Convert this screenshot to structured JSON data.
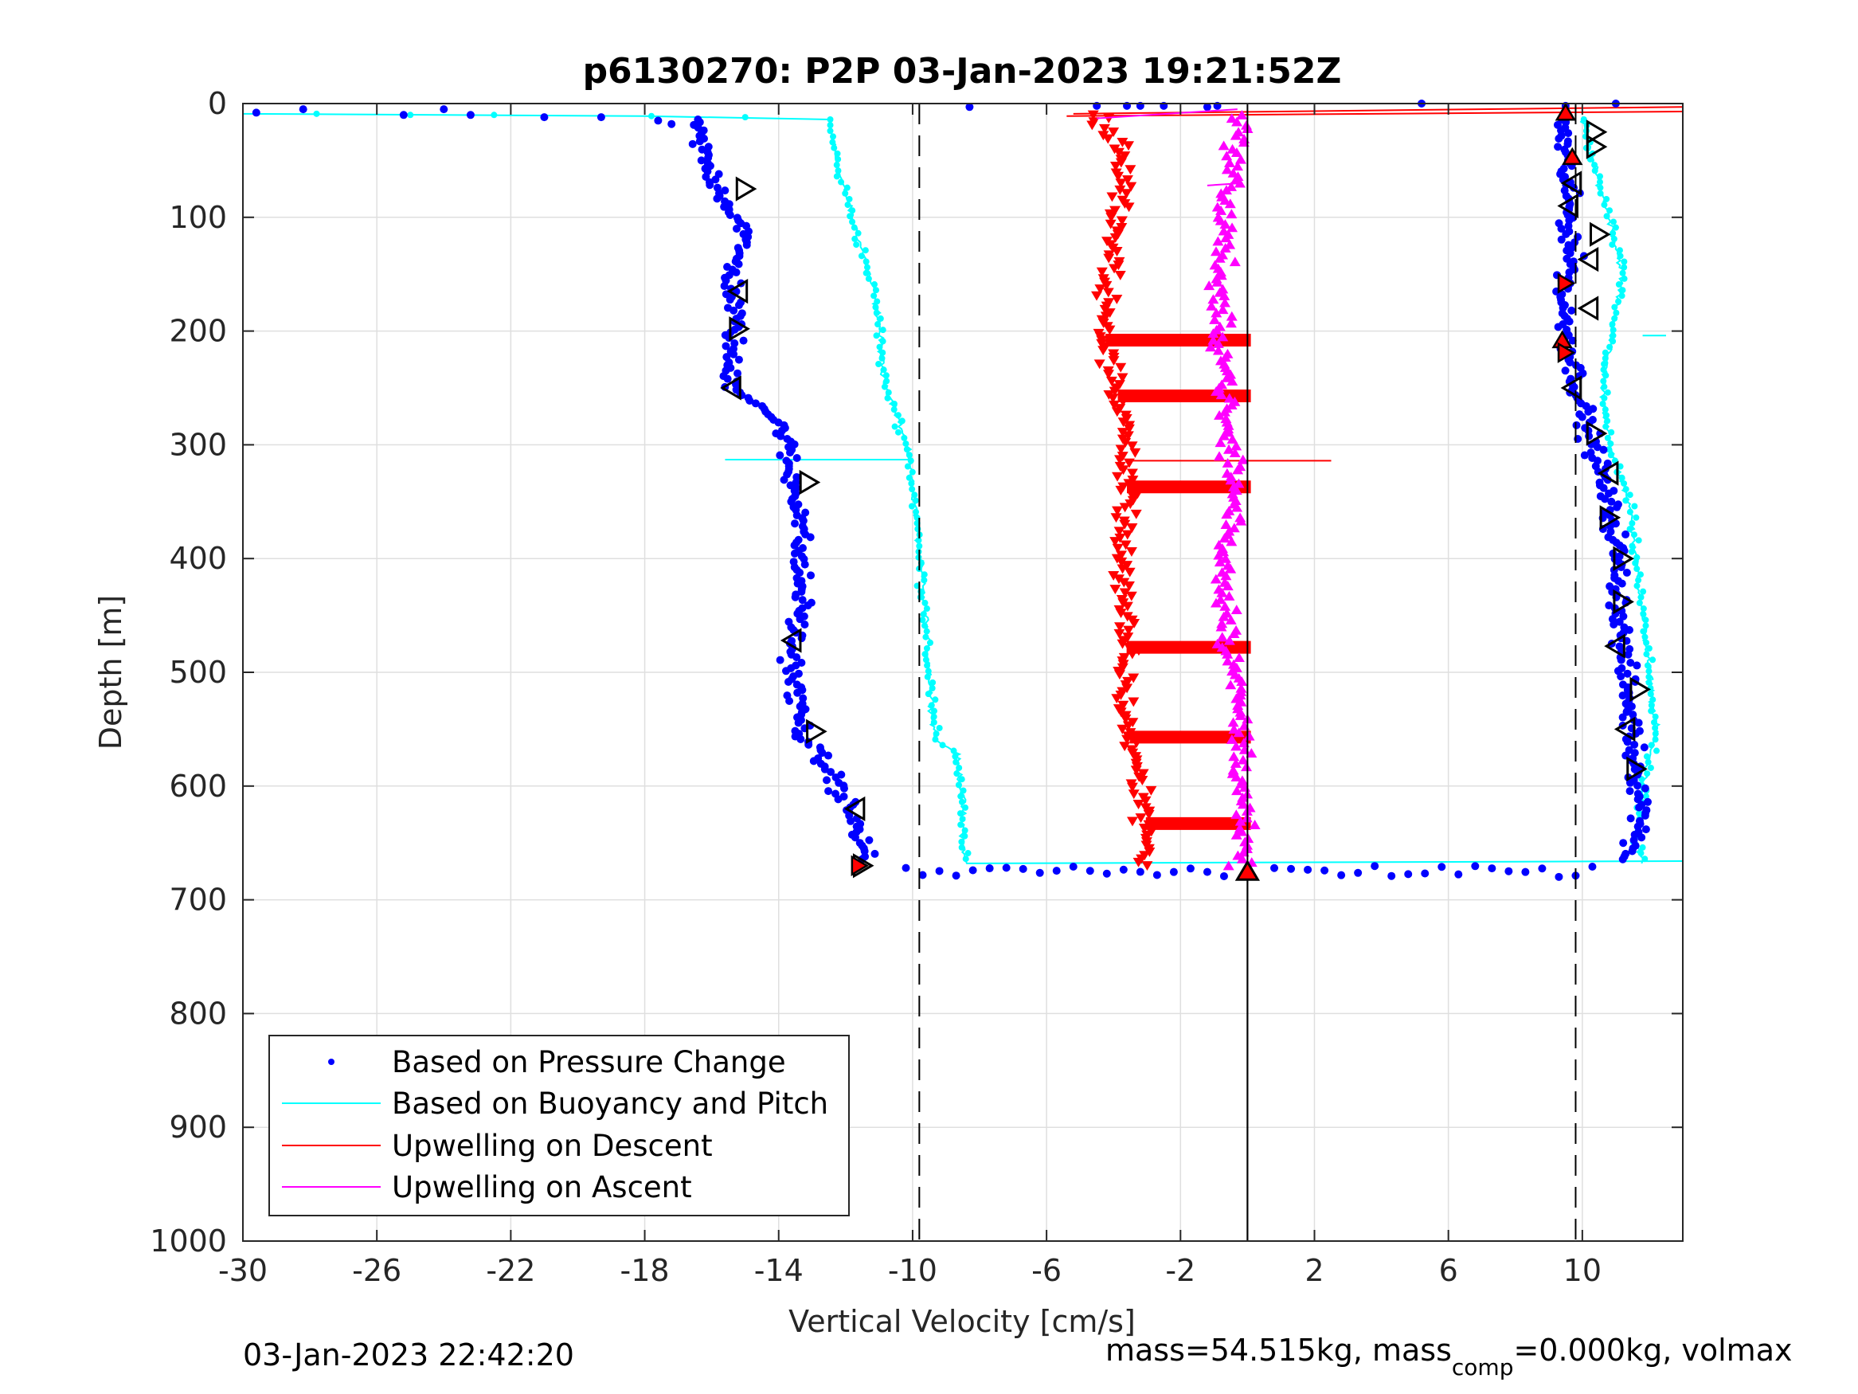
{
  "chart_data": {
    "type": "scatter",
    "title": "p6130270: P2P 03-Jan-2023 19:21:52Z",
    "xlabel": "Vertical Velocity [cm/s]",
    "ylabel": "Depth [m]",
    "xlim": [
      -30,
      13
    ],
    "ylim": [
      0,
      1000
    ],
    "y_reversed": true,
    "grid": true,
    "x_ticks": [
      -30,
      -26,
      -22,
      -18,
      -14,
      -10,
      -6,
      -2,
      2,
      6,
      10
    ],
    "x_tick_labels": [
      "-30",
      "-26",
      "-22",
      "-18",
      "-14",
      "-10",
      "-6",
      "-2",
      "2",
      "6",
      "10"
    ],
    "y_ticks": [
      0,
      100,
      200,
      300,
      400,
      500,
      600,
      700,
      800,
      900,
      1000
    ],
    "y_tick_labels": [
      "0",
      "100",
      "200",
      "300",
      "400",
      "500",
      "600",
      "700",
      "800",
      "900",
      "1000"
    ],
    "legend_position": "bottom-left",
    "legend": [
      {
        "label": "Based on Pressure Change",
        "color": "#0000ff",
        "style": "dot"
      },
      {
        "label": "Based on Buoyancy and Pitch",
        "color": "#00ffff",
        "style": "line"
      },
      {
        "label": "Upwelling on Descent",
        "color": "#ff0000",
        "style": "line"
      },
      {
        "label": "Upwelling on Ascent",
        "color": "#ff00ff",
        "style": "line"
      }
    ],
    "reference_lines": [
      {
        "x": -9.8,
        "style": "dashed",
        "color": "#000000"
      },
      {
        "x": 9.8,
        "style": "dashed",
        "color": "#000000"
      },
      {
        "x": 0,
        "style": "solid",
        "color": "#000000"
      }
    ],
    "series": [
      {
        "name": "Based on Pressure Change",
        "color": "#0000ff",
        "marker": "dot",
        "description": "descent (negative velocity) profile",
        "profile": [
          [
            -16.5,
            15
          ],
          [
            -16.2,
            50
          ],
          [
            -15.5,
            90
          ],
          [
            -15.0,
            110
          ],
          [
            -15.4,
            150
          ],
          [
            -15.3,
            200
          ],
          [
            -15.5,
            230
          ],
          [
            -15.3,
            250
          ],
          [
            -14.5,
            265
          ],
          [
            -13.8,
            290
          ],
          [
            -13.7,
            320
          ],
          [
            -13.3,
            360
          ],
          [
            -13.4,
            400
          ],
          [
            -13.3,
            440
          ],
          [
            -13.6,
            480
          ],
          [
            -13.5,
            520
          ],
          [
            -13.2,
            560
          ],
          [
            -12.4,
            590
          ],
          [
            -11.9,
            620
          ],
          [
            -11.5,
            650
          ],
          [
            -11.4,
            665
          ]
        ]
      },
      {
        "name": "Based on Pressure Change (ascent)",
        "color": "#0000ff",
        "marker": "dot",
        "description": "ascent (positive velocity) profile",
        "profile": [
          [
            9.4,
            15
          ],
          [
            9.5,
            60
          ],
          [
            9.6,
            100
          ],
          [
            9.7,
            140
          ],
          [
            9.4,
            170
          ],
          [
            9.6,
            210
          ],
          [
            9.8,
            240
          ],
          [
            10.1,
            280
          ],
          [
            10.6,
            330
          ],
          [
            11.0,
            380
          ],
          [
            11.1,
            430
          ],
          [
            11.2,
            480
          ],
          [
            11.4,
            530
          ],
          [
            11.6,
            580
          ],
          [
            11.8,
            620
          ],
          [
            11.6,
            650
          ],
          [
            11.3,
            665
          ]
        ]
      },
      {
        "name": "Based on Buoyancy and Pitch",
        "color": "#00ffff",
        "marker": "line",
        "description": "descent profile",
        "profile": [
          [
            -12.5,
            15
          ],
          [
            -12.2,
            60
          ],
          [
            -11.8,
            100
          ],
          [
            -11.3,
            150
          ],
          [
            -11.0,
            190
          ],
          [
            -10.9,
            240
          ],
          [
            -10.5,
            270
          ],
          [
            -10.1,
            310
          ],
          [
            -9.9,
            360
          ],
          [
            -9.8,
            400
          ],
          [
            -9.6,
            450
          ],
          [
            -9.5,
            500
          ],
          [
            -9.4,
            540
          ],
          [
            -9.3,
            560
          ],
          [
            -8.7,
            570
          ],
          [
            -8.5,
            610
          ],
          [
            -8.5,
            650
          ],
          [
            -8.4,
            665
          ]
        ]
      },
      {
        "name": "Based on Buoyancy and Pitch (ascent)",
        "color": "#00ffff",
        "marker": "line",
        "description": "ascent profile",
        "profile": [
          [
            10.0,
            15
          ],
          [
            10.4,
            60
          ],
          [
            10.8,
            100
          ],
          [
            11.2,
            150
          ],
          [
            10.9,
            200
          ],
          [
            10.6,
            250
          ],
          [
            10.8,
            300
          ],
          [
            11.4,
            350
          ],
          [
            11.6,
            400
          ],
          [
            11.8,
            450
          ],
          [
            12.0,
            500
          ],
          [
            12.2,
            550
          ],
          [
            11.8,
            600
          ],
          [
            11.6,
            650
          ],
          [
            11.8,
            665
          ]
        ]
      },
      {
        "name": "Upwelling on Descent",
        "color": "#ff0000",
        "marker": "triangle-down",
        "profile": [
          [
            -4.5,
            15
          ],
          [
            -3.7,
            40
          ],
          [
            -3.8,
            80
          ],
          [
            -4.0,
            120
          ],
          [
            -4.2,
            160
          ],
          [
            -4.3,
            200
          ],
          [
            -4.0,
            240
          ],
          [
            -3.7,
            280
          ],
          [
            -3.6,
            320
          ],
          [
            -3.6,
            360
          ],
          [
            -3.7,
            400
          ],
          [
            -3.8,
            440
          ],
          [
            -3.6,
            480
          ],
          [
            -3.7,
            520
          ],
          [
            -3.5,
            560
          ],
          [
            -3.2,
            600
          ],
          [
            -3.0,
            640
          ],
          [
            -3.0,
            665
          ]
        ]
      },
      {
        "name": "Upwelling on Ascent",
        "color": "#ff00ff",
        "marker": "triangle-up",
        "profile": [
          [
            -0.2,
            15
          ],
          [
            -0.4,
            50
          ],
          [
            -0.7,
            100
          ],
          [
            -0.7,
            140
          ],
          [
            -1.0,
            160
          ],
          [
            -0.8,
            200
          ],
          [
            -0.6,
            240
          ],
          [
            -0.7,
            280
          ],
          [
            -0.4,
            320
          ],
          [
            -0.4,
            360
          ],
          [
            -0.7,
            400
          ],
          [
            -0.6,
            440
          ],
          [
            -0.5,
            480
          ],
          [
            -0.3,
            520
          ],
          [
            -0.2,
            560
          ],
          [
            -0.1,
            600
          ],
          [
            -0.2,
            640
          ],
          [
            -0.2,
            665
          ]
        ]
      }
    ]
  },
  "footer": {
    "timestamp": "03-Jan-2023 22:42:20",
    "mass_text": "mass=54.515kg, mass",
    "mass_sub": "comp",
    "mass_rest": "=0.000kg, volmax"
  }
}
